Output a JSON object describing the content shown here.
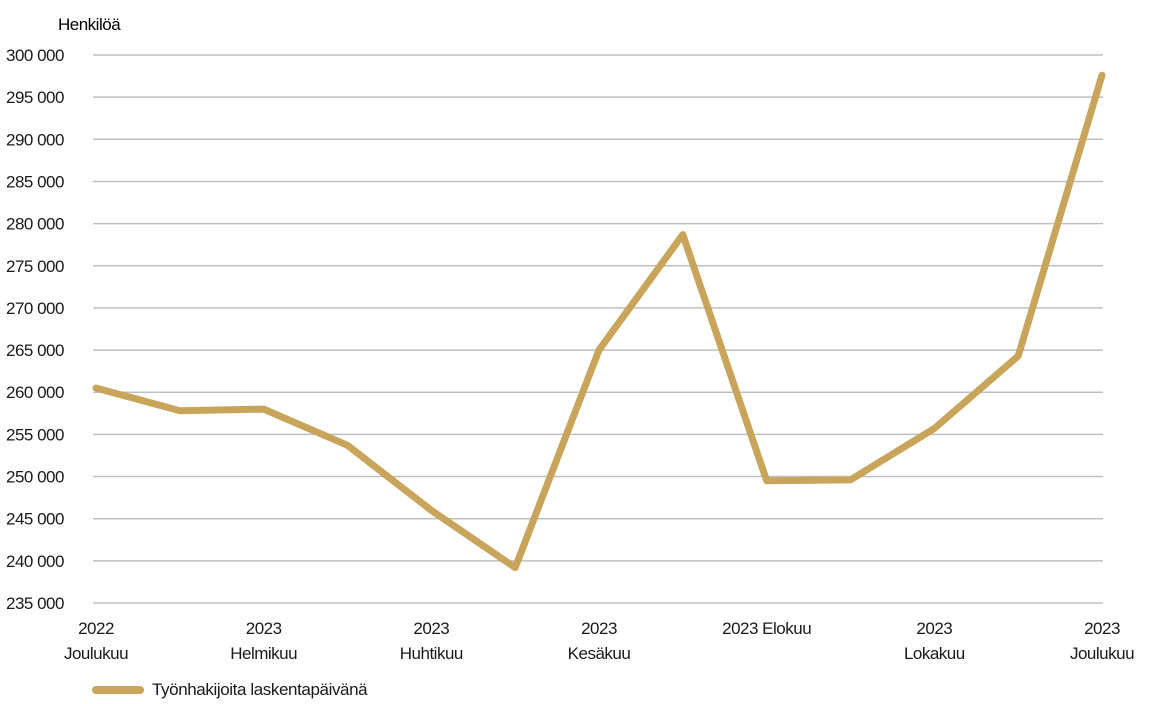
{
  "chart_data": {
    "type": "line",
    "ylabel": "Henkilöä",
    "ylim": [
      235000,
      300000
    ],
    "ytick_step": 5000,
    "yticks": [
      "300 000",
      "295 000",
      "290 000",
      "285 000",
      "280 000",
      "275 000",
      "270 000",
      "265 000",
      "260 000",
      "255 000",
      "250 000",
      "245 000",
      "240 000",
      "235 000"
    ],
    "x_labels": [
      {
        "index": 0,
        "lines": [
          "2022",
          "Joulukuu"
        ]
      },
      {
        "index": 2,
        "lines": [
          "2023",
          "Helmikuu"
        ]
      },
      {
        "index": 4,
        "lines": [
          "2023",
          "Huhtikuu"
        ]
      },
      {
        "index": 6,
        "lines": [
          "2023",
          "Kesäkuu"
        ]
      },
      {
        "index": 8,
        "lines": [
          "2023 Elokuu"
        ]
      },
      {
        "index": 10,
        "lines": [
          "2023",
          "Lokakuu"
        ]
      },
      {
        "index": 12,
        "lines": [
          "2023",
          "Joulukuu"
        ]
      }
    ],
    "series": [
      {
        "name": "Työnhakijoita laskentapäivänä",
        "color": "#C9A55C",
        "values": [
          260500,
          257800,
          258000,
          253700,
          246000,
          239200,
          265000,
          278700,
          249500,
          249600,
          255700,
          264300,
          297600
        ]
      }
    ],
    "grid": true,
    "legend_position": "bottom-left"
  }
}
